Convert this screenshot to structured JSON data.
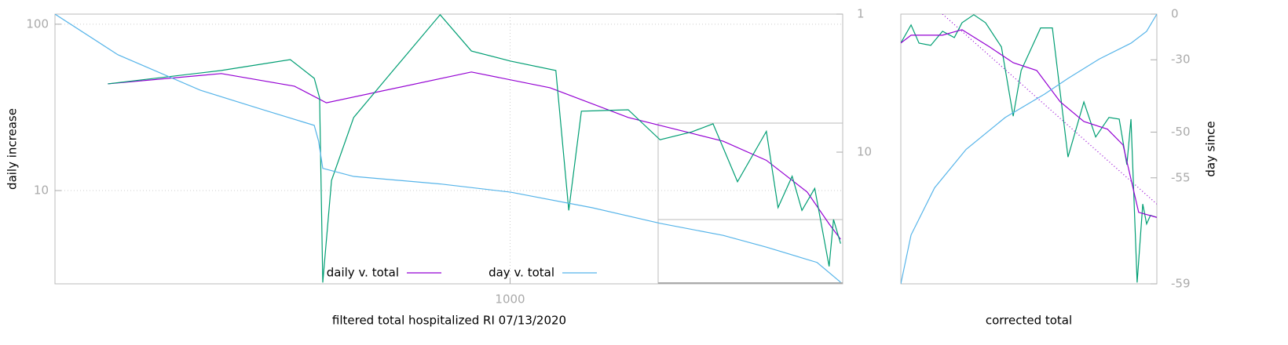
{
  "chart_data": [
    {
      "type": "line",
      "xlabel": "filtered total hospitalized RI 07/13/2020",
      "ylabel": "daily increase",
      "xscale": "log",
      "yscale": "log",
      "y2scale": "log",
      "xlim": [
        150,
        4000
      ],
      "ylim": [
        2.75,
        115
      ],
      "y2lim": [
        90,
        1
      ],
      "xticks": [
        1000
      ],
      "yticks": [
        10,
        100
      ],
      "y2ticks": [
        1,
        10
      ],
      "grid": true,
      "legend": "bottom",
      "series": [
        {
          "name": "daily v. total",
          "color": "#9400d3",
          "x": [
            187,
            300,
            407,
            465,
            851,
            1181,
            1636,
            2130,
            2430,
            2910,
            3450,
            3780,
            3965
          ],
          "values": [
            43.8,
            50.5,
            42.4,
            33.7,
            51.6,
            41.5,
            27.5,
            22.1,
            19.8,
            15.2,
            9.8,
            6.3,
            5.1
          ]
        },
        {
          "color": "#009e73",
          "x": [
            187,
            300,
            400,
            442,
            452,
            458,
            475,
            521,
            614,
            747,
            851,
            1002,
            1210,
            1277,
            1346,
            1636,
            1868,
            2130,
            2330,
            2580,
            2910,
            3055,
            3240,
            3375,
            3560,
            3780,
            3850,
            3965
          ],
          "values": [
            43.8,
            52.7,
            61.3,
            47.3,
            36.0,
            2.8,
            11.5,
            27.5,
            52.7,
            114,
            69,
            60,
            52.7,
            7.6,
            30,
            30.6,
            20.2,
            22.5,
            25.2,
            11.3,
            22.7,
            7.9,
            12.2,
            7.6,
            10.3,
            3.5,
            6.7,
            4.8
          ]
        },
        {
          "name": "day v. total",
          "color": "#56b4e9",
          "axis": "y2",
          "x": [
            150,
            195,
            275,
            357,
            442,
            450,
            458,
            521,
            747,
            1002,
            1410,
            1868,
            2430,
            2910,
            3595,
            3965
          ],
          "values": [
            1.0,
            1.97,
            3.56,
            4.93,
            6.4,
            8.3,
            13.1,
            15.0,
            17.0,
            19.5,
            25.3,
            32.8,
            40.1,
            48.8,
            63,
            87.6
          ]
        }
      ]
    },
    {
      "type": "line",
      "xlabel": "corrected total",
      "y2label": "day since",
      "yscale": "log",
      "y2scale": "log-shifted",
      "xlim": [
        0,
        100
      ],
      "ylim": [
        2.75,
        115
      ],
      "y2lim": [
        -59,
        0
      ],
      "y2ticks": [
        0,
        -30,
        -50,
        -55,
        -59
      ],
      "series": [
        {
          "color": "#9400d3",
          "dash": true,
          "x": [
            16.3,
            100
          ],
          "values": [
            115,
            8.3
          ]
        },
        {
          "color": "#009e73",
          "x": [
            0,
            4,
            7.1,
            11.7,
            16.3,
            20.9,
            23.9,
            28.5,
            33.1,
            39.3,
            43.9,
            47,
            54.6,
            59.2,
            65.3,
            71.5,
            76.1,
            81.3,
            85.3,
            88.3,
            89.9,
            92.3,
            94.5,
            96,
            97.5,
            100
          ],
          "values": [
            77.1,
            99,
            77,
            74.6,
            90.7,
            83.1,
            102,
            114,
            102,
            73,
            28,
            52.7,
            95,
            95,
            15.9,
            34.1,
            21,
            27.5,
            26.9,
            14.3,
            26.9,
            2.8,
            8.3,
            6.3,
            7.1,
            6.9
          ]
        },
        {
          "color": "#9400d3",
          "x": [
            0,
            4,
            16.3,
            23.9,
            34.7,
            43.9,
            53.1,
            62.3,
            71.5,
            80.7,
            86.8,
            92.9,
            100
          ],
          "values": [
            77.1,
            85.9,
            85.9,
            92.7,
            73,
            58.7,
            52.7,
            34.1,
            26.0,
            23.4,
            18.8,
            7.4,
            6.9
          ]
        },
        {
          "color": "#56b4e9",
          "axis": "y2",
          "x": [
            0,
            4,
            13.2,
            25.5,
            40.8,
            56.1,
            65.3,
            77.6,
            89.9,
            96,
            100
          ],
          "values": [
            -59,
            -57.9,
            -55.7,
            -52.3,
            -47.5,
            -42.2,
            -37.4,
            -29.6,
            -21.4,
            -13.8,
            0
          ]
        }
      ]
    }
  ]
}
